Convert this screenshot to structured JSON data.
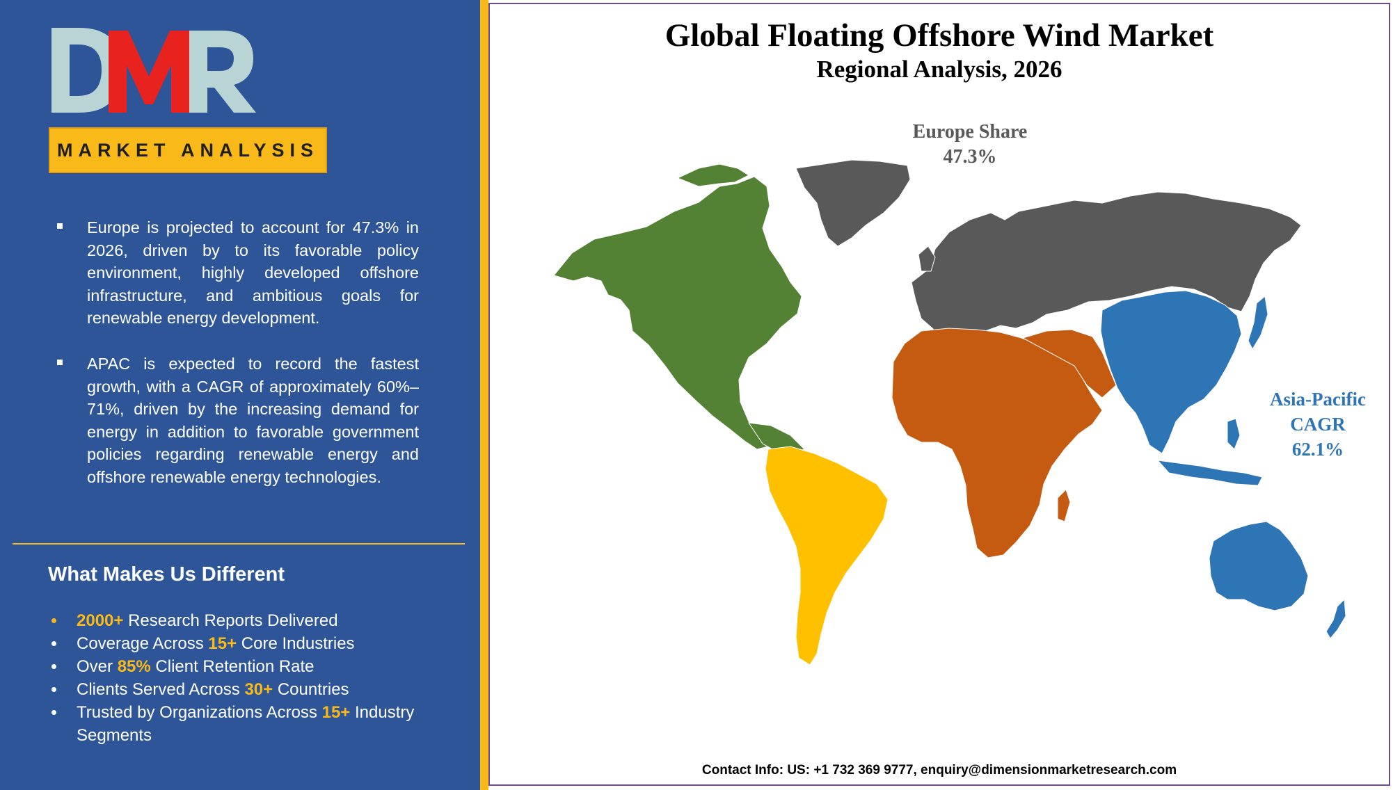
{
  "logo": {
    "text": "DMR"
  },
  "banner": {
    "label": "MARKET ANALYSIS"
  },
  "insights": [
    "Europe is projected to account for 47.3% in 2026, driven by to its favorable policy environment, highly developed offshore infrastructure, and ambitious goals for renewable energy development.",
    "APAC is expected to record the fastest growth, with a CAGR of approximately 60%–71%, driven by the increasing demand for energy in addition to favorable government policies regarding renewable energy and offshore renewable energy technologies."
  ],
  "different": {
    "title": "What Makes Us Different",
    "items": [
      {
        "pre": "",
        "highlight": "2000+",
        "post": " Research Reports Delivered"
      },
      {
        "pre": "Coverage Across ",
        "highlight": "15+",
        "post": " Core Industries"
      },
      {
        "pre": "Over ",
        "highlight": "85%",
        "post": " Client Retention Rate"
      },
      {
        "pre": "Clients Served Across ",
        "highlight": "30+",
        "post": " Countries"
      },
      {
        "pre": "Trusted by Organizations Across ",
        "highlight": "15+",
        "post": " Industry Segments"
      }
    ]
  },
  "map": {
    "title": "Global Floating Offshore Wind Market",
    "subtitle": "Regional Analysis, 2026",
    "europe_label": {
      "line1": "Europe Share",
      "line2": "47.3%"
    },
    "apac_label": {
      "line1": "Asia-Pacific",
      "line2": "CAGR",
      "line3": "62.1%"
    },
    "regions": [
      {
        "name": "North America",
        "color": "#548235"
      },
      {
        "name": "South America",
        "color": "#ffc000"
      },
      {
        "name": "Europe",
        "color": "#595959"
      },
      {
        "name": "Middle East & Africa",
        "color": "#c55a11"
      },
      {
        "name": "Asia-Pacific",
        "color": "#2e75b6"
      }
    ]
  },
  "contact": "Contact Info: US: +1 732 369 9777, enquiry@dimensionmarketresearch.com",
  "colors": {
    "panel": "#2e5597",
    "accent": "#f9b918"
  }
}
